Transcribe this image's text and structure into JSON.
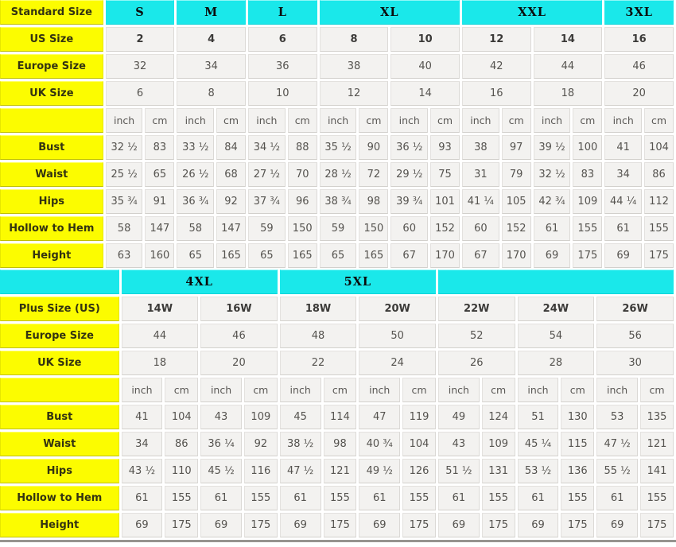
{
  "colors": {
    "label_yellow": "#FCFC00",
    "header_cyan": "#1AE8EA",
    "cell_bg": "#F3F2F0",
    "text_dark": "#3B3A38",
    "text_gray": "#55534F",
    "shadow_gray": "#96948F"
  },
  "chart_data": [
    {
      "type": "table",
      "title": "Standard size chart",
      "header": {
        "corner": {
          "text": "Standard Size",
          "style": "label"
        },
        "groups": [
          {
            "label": "S",
            "span": 1
          },
          {
            "label": "M",
            "span": 1
          },
          {
            "label": "L",
            "span": 1
          },
          {
            "label": "XL",
            "span": 2
          },
          {
            "label": "XXL",
            "span": 2
          },
          {
            "label": "3XL",
            "span": 1
          }
        ]
      },
      "info_rows": [
        {
          "label": "US Size",
          "bold": true,
          "values": [
            "2",
            "4",
            "6",
            "8",
            "10",
            "12",
            "14",
            "16"
          ]
        },
        {
          "label": "Europe Size",
          "bold": false,
          "values": [
            "32",
            "34",
            "36",
            "38",
            "40",
            "42",
            "44",
            "46"
          ]
        },
        {
          "label": "UK Size",
          "bold": false,
          "values": [
            "6",
            "8",
            "10",
            "12",
            "14",
            "16",
            "18",
            "20"
          ]
        }
      ],
      "unit_pair": [
        "inch",
        "cm"
      ],
      "measure_rows": [
        {
          "label": "Bust",
          "values": [
            "32 ½",
            "83",
            "33 ½",
            "84",
            "34 ½",
            "88",
            "35 ½",
            "90",
            "36 ½",
            "93",
            "38",
            "97",
            "39 ½",
            "100",
            "41",
            "104"
          ]
        },
        {
          "label": "Waist",
          "values": [
            "25 ½",
            "65",
            "26 ½",
            "68",
            "27 ½",
            "70",
            "28 ½",
            "72",
            "29 ½",
            "75",
            "31",
            "79",
            "32 ½",
            "83",
            "34",
            "86"
          ]
        },
        {
          "label": "Hips",
          "values": [
            "35 ¾",
            "91",
            "36 ¾",
            "92",
            "37 ¾",
            "96",
            "38 ¾",
            "98",
            "39 ¾",
            "101",
            "41 ¼",
            "105",
            "42 ¾",
            "109",
            "44 ¼",
            "112"
          ]
        },
        {
          "label": "Hollow to Hem",
          "values": [
            "58",
            "147",
            "58",
            "147",
            "59",
            "150",
            "59",
            "150",
            "60",
            "152",
            "60",
            "152",
            "61",
            "155",
            "61",
            "155"
          ]
        },
        {
          "label": "Height",
          "values": [
            "63",
            "160",
            "65",
            "165",
            "65",
            "165",
            "65",
            "165",
            "67",
            "170",
            "67",
            "170",
            "69",
            "175",
            "69",
            "175"
          ]
        }
      ]
    },
    {
      "type": "table",
      "title": "Plus size chart",
      "header": {
        "corner": {
          "text": "",
          "style": "cyan"
        },
        "groups": [
          {
            "label": "4XL",
            "span": 2
          },
          {
            "label": "5XL",
            "span": 2
          },
          {
            "label": "",
            "span": 3
          }
        ]
      },
      "info_rows": [
        {
          "label": "Plus Size (US)",
          "bold": true,
          "values": [
            "14W",
            "16W",
            "18W",
            "20W",
            "22W",
            "24W",
            "26W"
          ]
        },
        {
          "label": "Europe Size",
          "bold": false,
          "values": [
            "44",
            "46",
            "48",
            "50",
            "52",
            "54",
            "56"
          ]
        },
        {
          "label": "UK Size",
          "bold": false,
          "values": [
            "18",
            "20",
            "22",
            "24",
            "26",
            "28",
            "30"
          ]
        }
      ],
      "unit_pair": [
        "inch",
        "cm"
      ],
      "measure_rows": [
        {
          "label": "Bust",
          "values": [
            "41",
            "104",
            "43",
            "109",
            "45",
            "114",
            "47",
            "119",
            "49",
            "124",
            "51",
            "130",
            "53",
            "135"
          ]
        },
        {
          "label": "Waist",
          "values": [
            "34",
            "86",
            "36 ¼",
            "92",
            "38 ½",
            "98",
            "40 ¾",
            "104",
            "43",
            "109",
            "45 ¼",
            "115",
            "47 ½",
            "121"
          ]
        },
        {
          "label": "Hips",
          "values": [
            "43 ½",
            "110",
            "45 ½",
            "116",
            "47 ½",
            "121",
            "49 ½",
            "126",
            "51 ½",
            "131",
            "53 ½",
            "136",
            "55 ½",
            "141"
          ]
        },
        {
          "label": "Hollow to Hem",
          "values": [
            "61",
            "155",
            "61",
            "155",
            "61",
            "155",
            "61",
            "155",
            "61",
            "155",
            "61",
            "155",
            "61",
            "155"
          ]
        },
        {
          "label": "Height",
          "values": [
            "69",
            "175",
            "69",
            "175",
            "69",
            "175",
            "69",
            "175",
            "69",
            "175",
            "69",
            "175",
            "69",
            "175"
          ]
        }
      ]
    }
  ]
}
